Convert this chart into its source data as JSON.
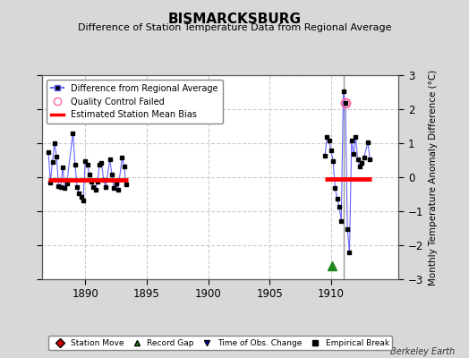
{
  "title": "BISMARCKSBURG",
  "subtitle": "Difference of Station Temperature Data from Regional Average",
  "ylabel": "Monthly Temperature Anomaly Difference (°C)",
  "credit": "Berkeley Earth",
  "ylim": [
    -3,
    3
  ],
  "xlim": [
    1886.5,
    1915.5
  ],
  "xticks": [
    1890,
    1895,
    1900,
    1905,
    1910
  ],
  "yticks": [
    -3,
    -2,
    -1,
    0,
    1,
    2,
    3
  ],
  "background_color": "#d8d8d8",
  "plot_bg_color": "#ffffff",
  "grid_color": "#cccccc",
  "series1_color": "#6666ff",
  "marker_color": "#000000",
  "bias_color": "#ff0000",
  "segment1": {
    "x_start": 1887.0,
    "x_end": 1893.5,
    "bias": -0.07,
    "data": [
      [
        1887.0,
        0.75
      ],
      [
        1887.17,
        -0.15
      ],
      [
        1887.33,
        0.45
      ],
      [
        1887.5,
        1.0
      ],
      [
        1887.67,
        0.6
      ],
      [
        1887.83,
        -0.25
      ],
      [
        1888.0,
        -0.28
      ],
      [
        1888.17,
        0.28
      ],
      [
        1888.33,
        -0.32
      ],
      [
        1888.5,
        -0.18
      ],
      [
        1889.0,
        1.3
      ],
      [
        1889.17,
        0.38
      ],
      [
        1889.33,
        -0.28
      ],
      [
        1889.5,
        -0.48
      ],
      [
        1889.67,
        -0.58
      ],
      [
        1889.83,
        -0.68
      ],
      [
        1890.0,
        0.48
      ],
      [
        1890.17,
        0.38
      ],
      [
        1890.33,
        0.08
      ],
      [
        1890.5,
        -0.12
      ],
      [
        1890.67,
        -0.28
      ],
      [
        1890.83,
        -0.38
      ],
      [
        1891.0,
        -0.12
      ],
      [
        1891.17,
        0.38
      ],
      [
        1891.33,
        0.42
      ],
      [
        1891.5,
        -0.08
      ],
      [
        1891.67,
        -0.28
      ],
      [
        1892.0,
        0.52
      ],
      [
        1892.17,
        0.08
      ],
      [
        1892.33,
        -0.32
      ],
      [
        1892.5,
        -0.18
      ],
      [
        1892.67,
        -0.38
      ],
      [
        1893.0,
        0.58
      ],
      [
        1893.17,
        0.32
      ],
      [
        1893.33,
        -0.22
      ]
    ]
  },
  "segment2": {
    "x_start": 1909.5,
    "x_end": 1913.3,
    "bias": -0.05,
    "data": [
      [
        1909.5,
        0.62
      ],
      [
        1909.67,
        1.18
      ],
      [
        1909.83,
        1.08
      ],
      [
        1910.0,
        0.78
      ],
      [
        1910.17,
        0.48
      ],
      [
        1910.33,
        -0.32
      ],
      [
        1910.5,
        -0.62
      ],
      [
        1910.67,
        -0.88
      ],
      [
        1910.83,
        -1.28
      ],
      [
        1911.0,
        2.52
      ],
      [
        1911.17,
        2.18
      ],
      [
        1911.33,
        -1.52
      ],
      [
        1911.5,
        -2.22
      ],
      [
        1911.67,
        1.08
      ],
      [
        1911.83,
        0.68
      ],
      [
        1912.0,
        1.18
      ],
      [
        1912.17,
        0.52
      ],
      [
        1912.33,
        0.32
      ],
      [
        1912.5,
        0.42
      ],
      [
        1912.67,
        0.58
      ],
      [
        1913.0,
        1.02
      ],
      [
        1913.17,
        0.52
      ]
    ]
  },
  "qc_failed": [
    [
      1911.17,
      2.18
    ]
  ],
  "record_gap_x": 1910.08,
  "record_gap_y": -2.6,
  "vertical_line_x": 1911.0
}
